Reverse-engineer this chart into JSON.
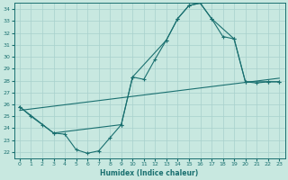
{
  "xlabel": "Humidex (Indice chaleur)",
  "xlim": [
    -0.5,
    23.5
  ],
  "ylim": [
    21.5,
    34.5
  ],
  "yticks": [
    22,
    23,
    24,
    25,
    26,
    27,
    28,
    29,
    30,
    31,
    32,
    33,
    34
  ],
  "xticks": [
    0,
    1,
    2,
    3,
    4,
    5,
    6,
    7,
    8,
    9,
    10,
    11,
    12,
    13,
    14,
    15,
    16,
    17,
    18,
    19,
    20,
    21,
    22,
    23
  ],
  "background_color": "#c8e8e0",
  "grid_color": "#a8d0cc",
  "line_color": "#1a7070",
  "line1_x": [
    0,
    1,
    2,
    3,
    4,
    5,
    6,
    7,
    8,
    9,
    10,
    11,
    12,
    13,
    14,
    15,
    16,
    17,
    18,
    19,
    20,
    21,
    22,
    23
  ],
  "line1_y": [
    25.8,
    25.0,
    24.3,
    23.6,
    23.5,
    22.2,
    21.9,
    22.1,
    23.2,
    24.3,
    28.3,
    28.1,
    29.8,
    31.4,
    33.2,
    34.3,
    34.5,
    33.2,
    31.7,
    31.5,
    27.9,
    27.8,
    27.9,
    27.9
  ],
  "line2_x": [
    0,
    3,
    9,
    10,
    13,
    14,
    15,
    16,
    17,
    19,
    20,
    22,
    23
  ],
  "line2_y": [
    25.8,
    23.6,
    24.3,
    28.3,
    31.4,
    33.2,
    34.3,
    34.5,
    33.2,
    31.5,
    27.9,
    27.9,
    27.9
  ],
  "line3_x": [
    0,
    23
  ],
  "line3_y": [
    25.5,
    28.2
  ]
}
